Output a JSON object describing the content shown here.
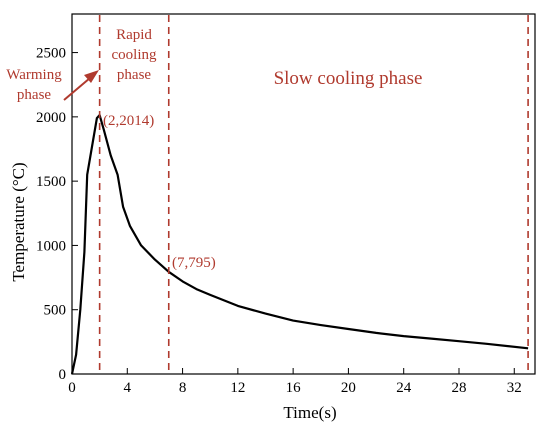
{
  "chart_data": {
    "type": "line",
    "title": "",
    "xlabel": "Time(s)",
    "ylabel": "Temperature (°C)",
    "xlim": [
      0,
      33.5
    ],
    "ylim": [
      0,
      2800
    ],
    "x_ticks": [
      0,
      4,
      8,
      12,
      16,
      20,
      24,
      28,
      32
    ],
    "y_ticks": [
      0,
      500,
      1000,
      1500,
      2000,
      2500
    ],
    "grid": false,
    "legend": "none",
    "series": [
      {
        "color": "#000000",
        "points": [
          [
            0,
            0
          ],
          [
            0.3,
            150
          ],
          [
            0.6,
            500
          ],
          [
            0.9,
            950
          ],
          [
            1.1,
            1550
          ],
          [
            1.5,
            1800
          ],
          [
            1.8,
            1990
          ],
          [
            2,
            2014
          ],
          [
            2.3,
            1900
          ],
          [
            2.8,
            1700
          ],
          [
            3.3,
            1550
          ],
          [
            3.7,
            1300
          ],
          [
            4.2,
            1150
          ],
          [
            5,
            1000
          ],
          [
            6,
            890
          ],
          [
            7,
            795
          ],
          [
            8,
            720
          ],
          [
            9,
            660
          ],
          [
            10,
            615
          ],
          [
            12,
            530
          ],
          [
            14,
            470
          ],
          [
            16,
            415
          ],
          [
            18,
            380
          ],
          [
            20,
            350
          ],
          [
            22,
            320
          ],
          [
            24,
            295
          ],
          [
            26,
            275
          ],
          [
            28,
            255
          ],
          [
            30,
            235
          ],
          [
            33,
            200
          ]
        ]
      }
    ],
    "phase_lines": {
      "x": [
        2,
        7,
        33
      ],
      "color": "#b03a2e"
    },
    "annotations": {
      "warming_phase": [
        "Warming",
        "phase"
      ],
      "rapid_cooling_phase": [
        "Rapid",
        "cooling",
        "phase"
      ],
      "slow_cooling_phase": "Slow cooling phase",
      "peak_point": "(2,2014)",
      "transition_point": "(7,795)"
    }
  }
}
